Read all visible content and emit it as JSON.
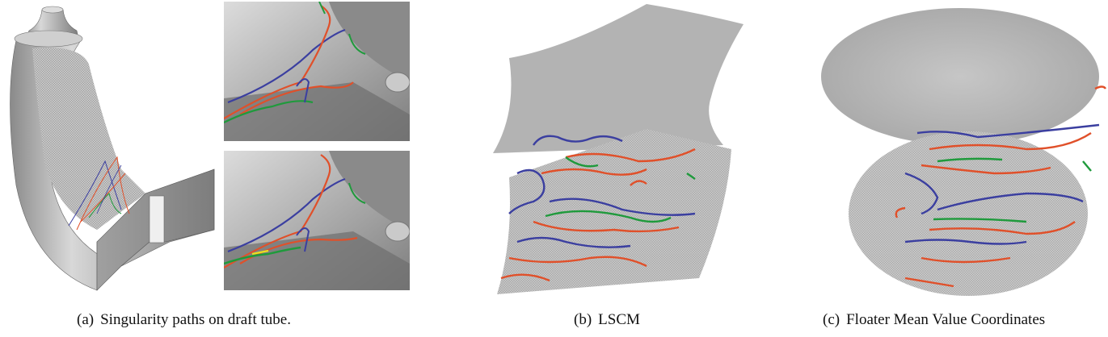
{
  "figure": {
    "subfigures": [
      {
        "tag": "(a)",
        "caption": "Singularity paths on draft tube."
      },
      {
        "tag": "(b)",
        "caption": "LSCM"
      },
      {
        "tag": "(c)",
        "caption": "Floater Mean Value Coordinates"
      }
    ],
    "path_colors": {
      "red": "#e0502a",
      "blue": "#3b3fa0",
      "green": "#1f9a3c",
      "yellow": "#e8e020"
    },
    "surface_color": "#b8b8b8"
  }
}
